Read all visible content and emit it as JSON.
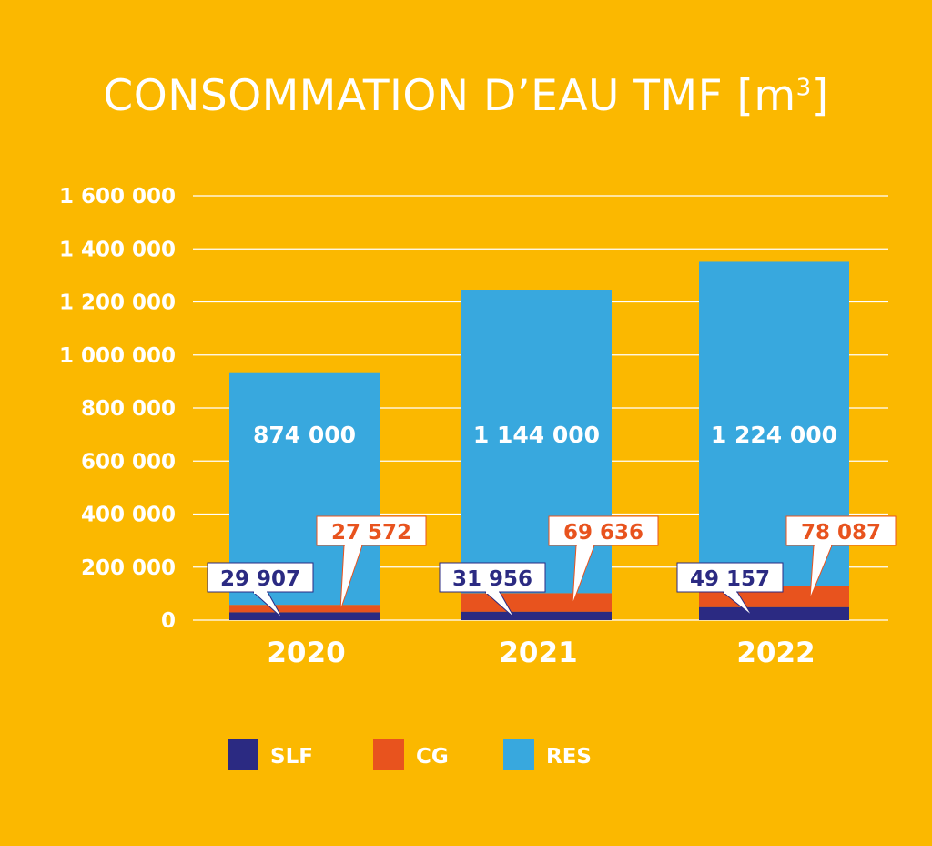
{
  "chart_data": {
    "type": "bar",
    "stacked": true,
    "title": "CONSOMMATION D’EAU TMF [m",
    "title_superscript": "3",
    "title_suffix": "]",
    "categories": [
      "2020",
      "2021",
      "2022"
    ],
    "series": [
      {
        "name": "SLF",
        "values": [
          29907,
          31956,
          49157
        ],
        "labels": [
          "29 907",
          "31 956",
          "49 157"
        ],
        "color": "#2b2a82"
      },
      {
        "name": "CG",
        "values": [
          27572,
          69636,
          78087
        ],
        "labels": [
          "27 572",
          "69 636",
          "78 087"
        ],
        "color": "#e8531e"
      },
      {
        "name": "RES",
        "values": [
          874000,
          1144000,
          1224000
        ],
        "labels": [
          "874 000",
          "1 144 000",
          "1 224 000"
        ],
        "color": "#38a8de"
      }
    ],
    "yticks": [
      0,
      200000,
      400000,
      600000,
      800000,
      1000000,
      1200000,
      1400000,
      1600000
    ],
    "ytick_labels": [
      "0",
      "200 000",
      "400 000",
      "600 000",
      "800 000",
      "1 000 000",
      "1 200 000",
      "1 400 000",
      "1 600 000"
    ],
    "ylim": [
      0,
      1600000
    ],
    "grid": true,
    "legend_position": "bottom",
    "xlabel": "",
    "ylabel": ""
  },
  "colors": {
    "background": "#fbb800",
    "grid": "#ffffff",
    "text": "#ffffff"
  }
}
